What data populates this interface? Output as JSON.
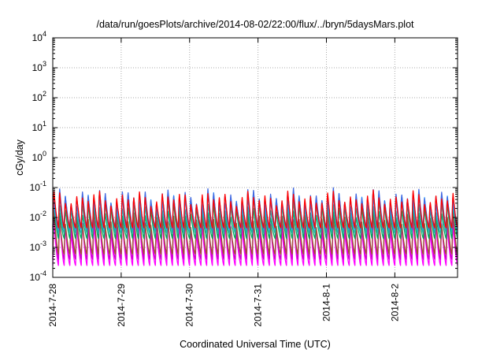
{
  "chart_data": {
    "type": "line",
    "title": "/data/run/goesPlots/archive/2014-08-02/22:00/flux/../bryn/5daysMars.plot",
    "xlabel": "Coordinated Universal Time (UTC)",
    "ylabel": "cGy/day",
    "yscale": "log",
    "ylim": [
      0.0001,
      10000
    ],
    "y_ticks": [
      {
        "base": "10",
        "exp": "-4"
      },
      {
        "base": "10",
        "exp": "-3"
      },
      {
        "base": "10",
        "exp": "-2"
      },
      {
        "base": "10",
        "exp": "-1"
      },
      {
        "base": "10",
        "exp": "0"
      },
      {
        "base": "10",
        "exp": "1"
      },
      {
        "base": "10",
        "exp": "2"
      },
      {
        "base": "10",
        "exp": "3"
      },
      {
        "base": "10",
        "exp": "4"
      }
    ],
    "x_range": [
      "2014-07-28",
      "2014-08-02T22:00"
    ],
    "x_ticks": [
      "2014-7-28",
      "2014-7-29",
      "2014-7-30",
      "2014-7-31",
      "2014-8-1",
      "2014-8-2"
    ],
    "grid": true,
    "legend": "none",
    "periodicity_per_day": 12,
    "series": [
      {
        "color": "#ff00ff",
        "peak": 0.006,
        "trough": 0.00025
      },
      {
        "color": "#cc00cc",
        "peak": 0.008,
        "trough": 0.0004
      },
      {
        "color": "#a0522d",
        "peak": 0.01,
        "trough": 0.0006
      },
      {
        "color": "#00aa66",
        "peak": 0.02,
        "trough": 0.002
      },
      {
        "color": "#20b2aa",
        "peak": 0.03,
        "trough": 0.003
      },
      {
        "color": "#1e90ff",
        "peak": 0.045,
        "trough": 0.004
      },
      {
        "color": "#4169e1",
        "peak": 0.06,
        "trough": 0.005
      },
      {
        "color": "#ff0000",
        "peak": 0.05,
        "trough": 0.0045
      }
    ]
  }
}
